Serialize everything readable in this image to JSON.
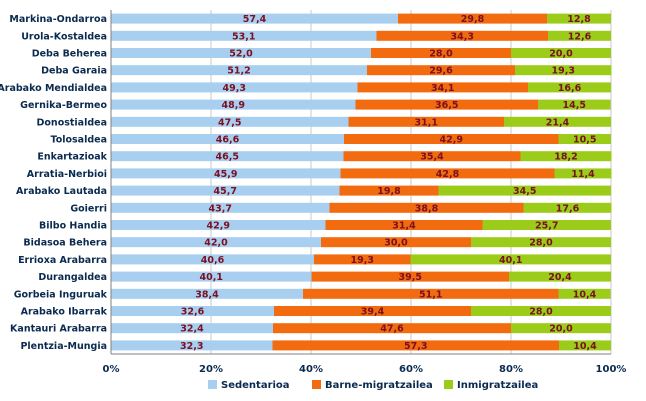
{
  "chart_data": {
    "type": "bar",
    "orientation": "horizontal",
    "stacked": "percent",
    "categories": [
      "Markina-Ondarroa",
      "Urola-Kostaldea",
      "Deba Beherea",
      "Deba Garaia",
      "Arabako Mendialdea",
      "Gernika-Bermeo",
      "Donostialdea",
      "Tolosaldea",
      "Enkartazioak",
      "Arratia-Nerbioi",
      "Arabako Lautada",
      "Goierri",
      "Bilbo Handia",
      "Bidasoa Behera",
      "Errioxa Arabarra",
      "Durangaldea",
      "Gorbeia Inguruak",
      "Arabako Ibarrak",
      "Kantauri Arabarra",
      "Plentzia-Mungia"
    ],
    "series": [
      {
        "name": "Sedentarioa",
        "color": "#a8cff0",
        "values": [
          57.4,
          53.1,
          52.0,
          51.2,
          49.3,
          48.9,
          47.5,
          46.6,
          46.5,
          45.9,
          45.7,
          43.7,
          42.9,
          42.0,
          40.6,
          40.1,
          38.4,
          32.6,
          32.4,
          32.3
        ],
        "labels": [
          "57,4",
          "53,1",
          "52,0",
          "51,2",
          "49,3",
          "48,9",
          "47,5",
          "46,6",
          "46,5",
          "45,9",
          "45,7",
          "43,7",
          "42,9",
          "42,0",
          "40,6",
          "40,1",
          "38,4",
          "32,6",
          "32,4",
          "32,3"
        ]
      },
      {
        "name": "Barne-migratzailea",
        "color": "#f26b0f",
        "values": [
          29.8,
          34.3,
          28.0,
          29.6,
          34.1,
          36.5,
          31.1,
          42.9,
          35.4,
          42.8,
          19.8,
          38.8,
          31.4,
          30.0,
          19.3,
          39.5,
          51.1,
          39.4,
          47.6,
          57.3
        ],
        "labels": [
          "29,8",
          "34,3",
          "28,0",
          "29,6",
          "34,1",
          "36,5",
          "31,1",
          "42,9",
          "35,4",
          "42,8",
          "19,8",
          "38,8",
          "31,4",
          "30,0",
          "19,3",
          "39,5",
          "51,1",
          "39,4",
          "47,6",
          "57,3"
        ]
      },
      {
        "name": "Inmigratzailea",
        "color": "#9ccc1a",
        "values": [
          12.8,
          12.6,
          20.0,
          19.3,
          16.6,
          14.5,
          21.4,
          10.5,
          18.2,
          11.4,
          34.5,
          17.6,
          25.7,
          28.0,
          40.1,
          20.4,
          10.4,
          28.0,
          20.0,
          10.4
        ],
        "labels": [
          "12,8",
          "12,6",
          "20,0",
          "19,3",
          "16,6",
          "14,5",
          "21,4",
          "10,5",
          "18,2",
          "11,4",
          "34,5",
          "17,6",
          "25,7",
          "28,0",
          "40,1",
          "20,4",
          "10,4",
          "28,0",
          "20,0",
          "10,4"
        ]
      }
    ],
    "xlim": [
      0,
      100
    ],
    "xticks": [
      "0%",
      "20%",
      "40%",
      "60%",
      "80%",
      "100%"
    ],
    "grid": true,
    "legend": "bottom",
    "title": "",
    "xlabel": "",
    "ylabel": ""
  }
}
